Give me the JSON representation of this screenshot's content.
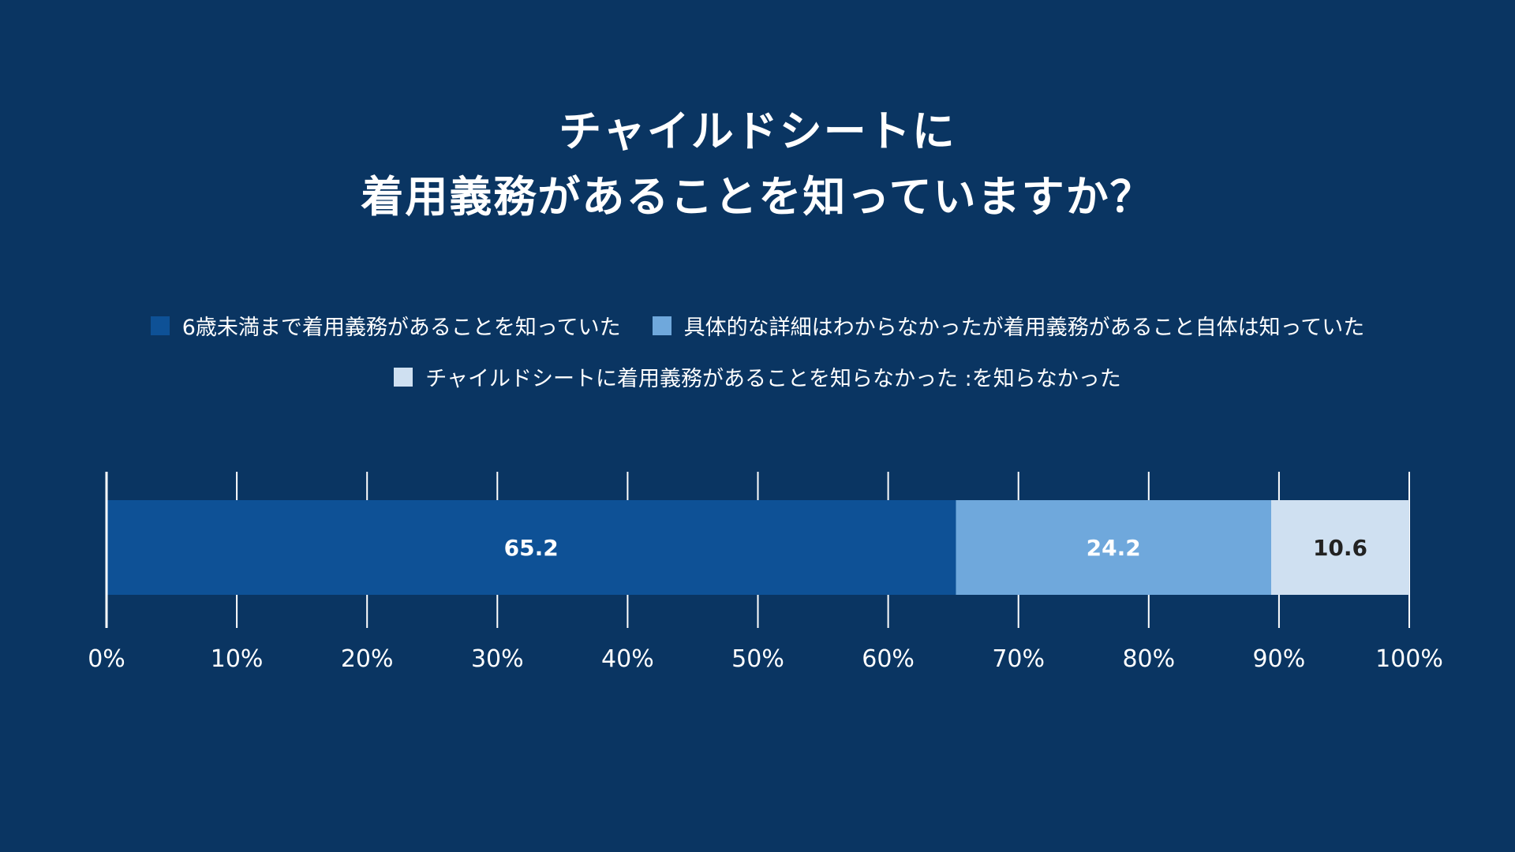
{
  "title": {
    "line1": "チャイルドシートに",
    "line2": "着用義務があることを知っていますか？"
  },
  "legend": [
    {
      "label": "6歳未満まで着用義務があることを知っていた",
      "color": "#0e5196"
    },
    {
      "label": "具体的な詳細はわからなかったが着用義務があること自体は知っていた",
      "color": "#6fa8dc"
    },
    {
      "label": "チャイルドシートに着用義務があることを知らなかった :を知らなかった",
      "color": "#cfe0f1"
    }
  ],
  "chart_data": {
    "type": "bar",
    "orientation": "horizontal",
    "stacked": true,
    "categories": [
      ""
    ],
    "series": [
      {
        "name": "6歳未満まで着用義務があることを知っていた",
        "values": [
          65.2
        ],
        "color": "#0e5196",
        "label_color": "#ffffff"
      },
      {
        "name": "具体的な詳細はわからなかったが着用義務があること自体は知っていた",
        "values": [
          24.2
        ],
        "color": "#6fa8dc",
        "label_color": "#ffffff"
      },
      {
        "name": "チャイルドシートに着用義務があることを知らなかった :を知らなかった",
        "values": [
          10.6
        ],
        "color": "#cfe0f1",
        "label_color": "#222222"
      }
    ],
    "data_labels": [
      "65.2",
      "24.2",
      "10.6"
    ],
    "xlim": [
      0,
      100
    ],
    "xticks": [
      0,
      10,
      20,
      30,
      40,
      50,
      60,
      70,
      80,
      90,
      100
    ],
    "xtick_labels": [
      "0%",
      "10%",
      "20%",
      "30%",
      "40%",
      "50%",
      "60%",
      "70%",
      "80%",
      "90%",
      "100%"
    ],
    "grid": true,
    "legend_position": "top"
  }
}
